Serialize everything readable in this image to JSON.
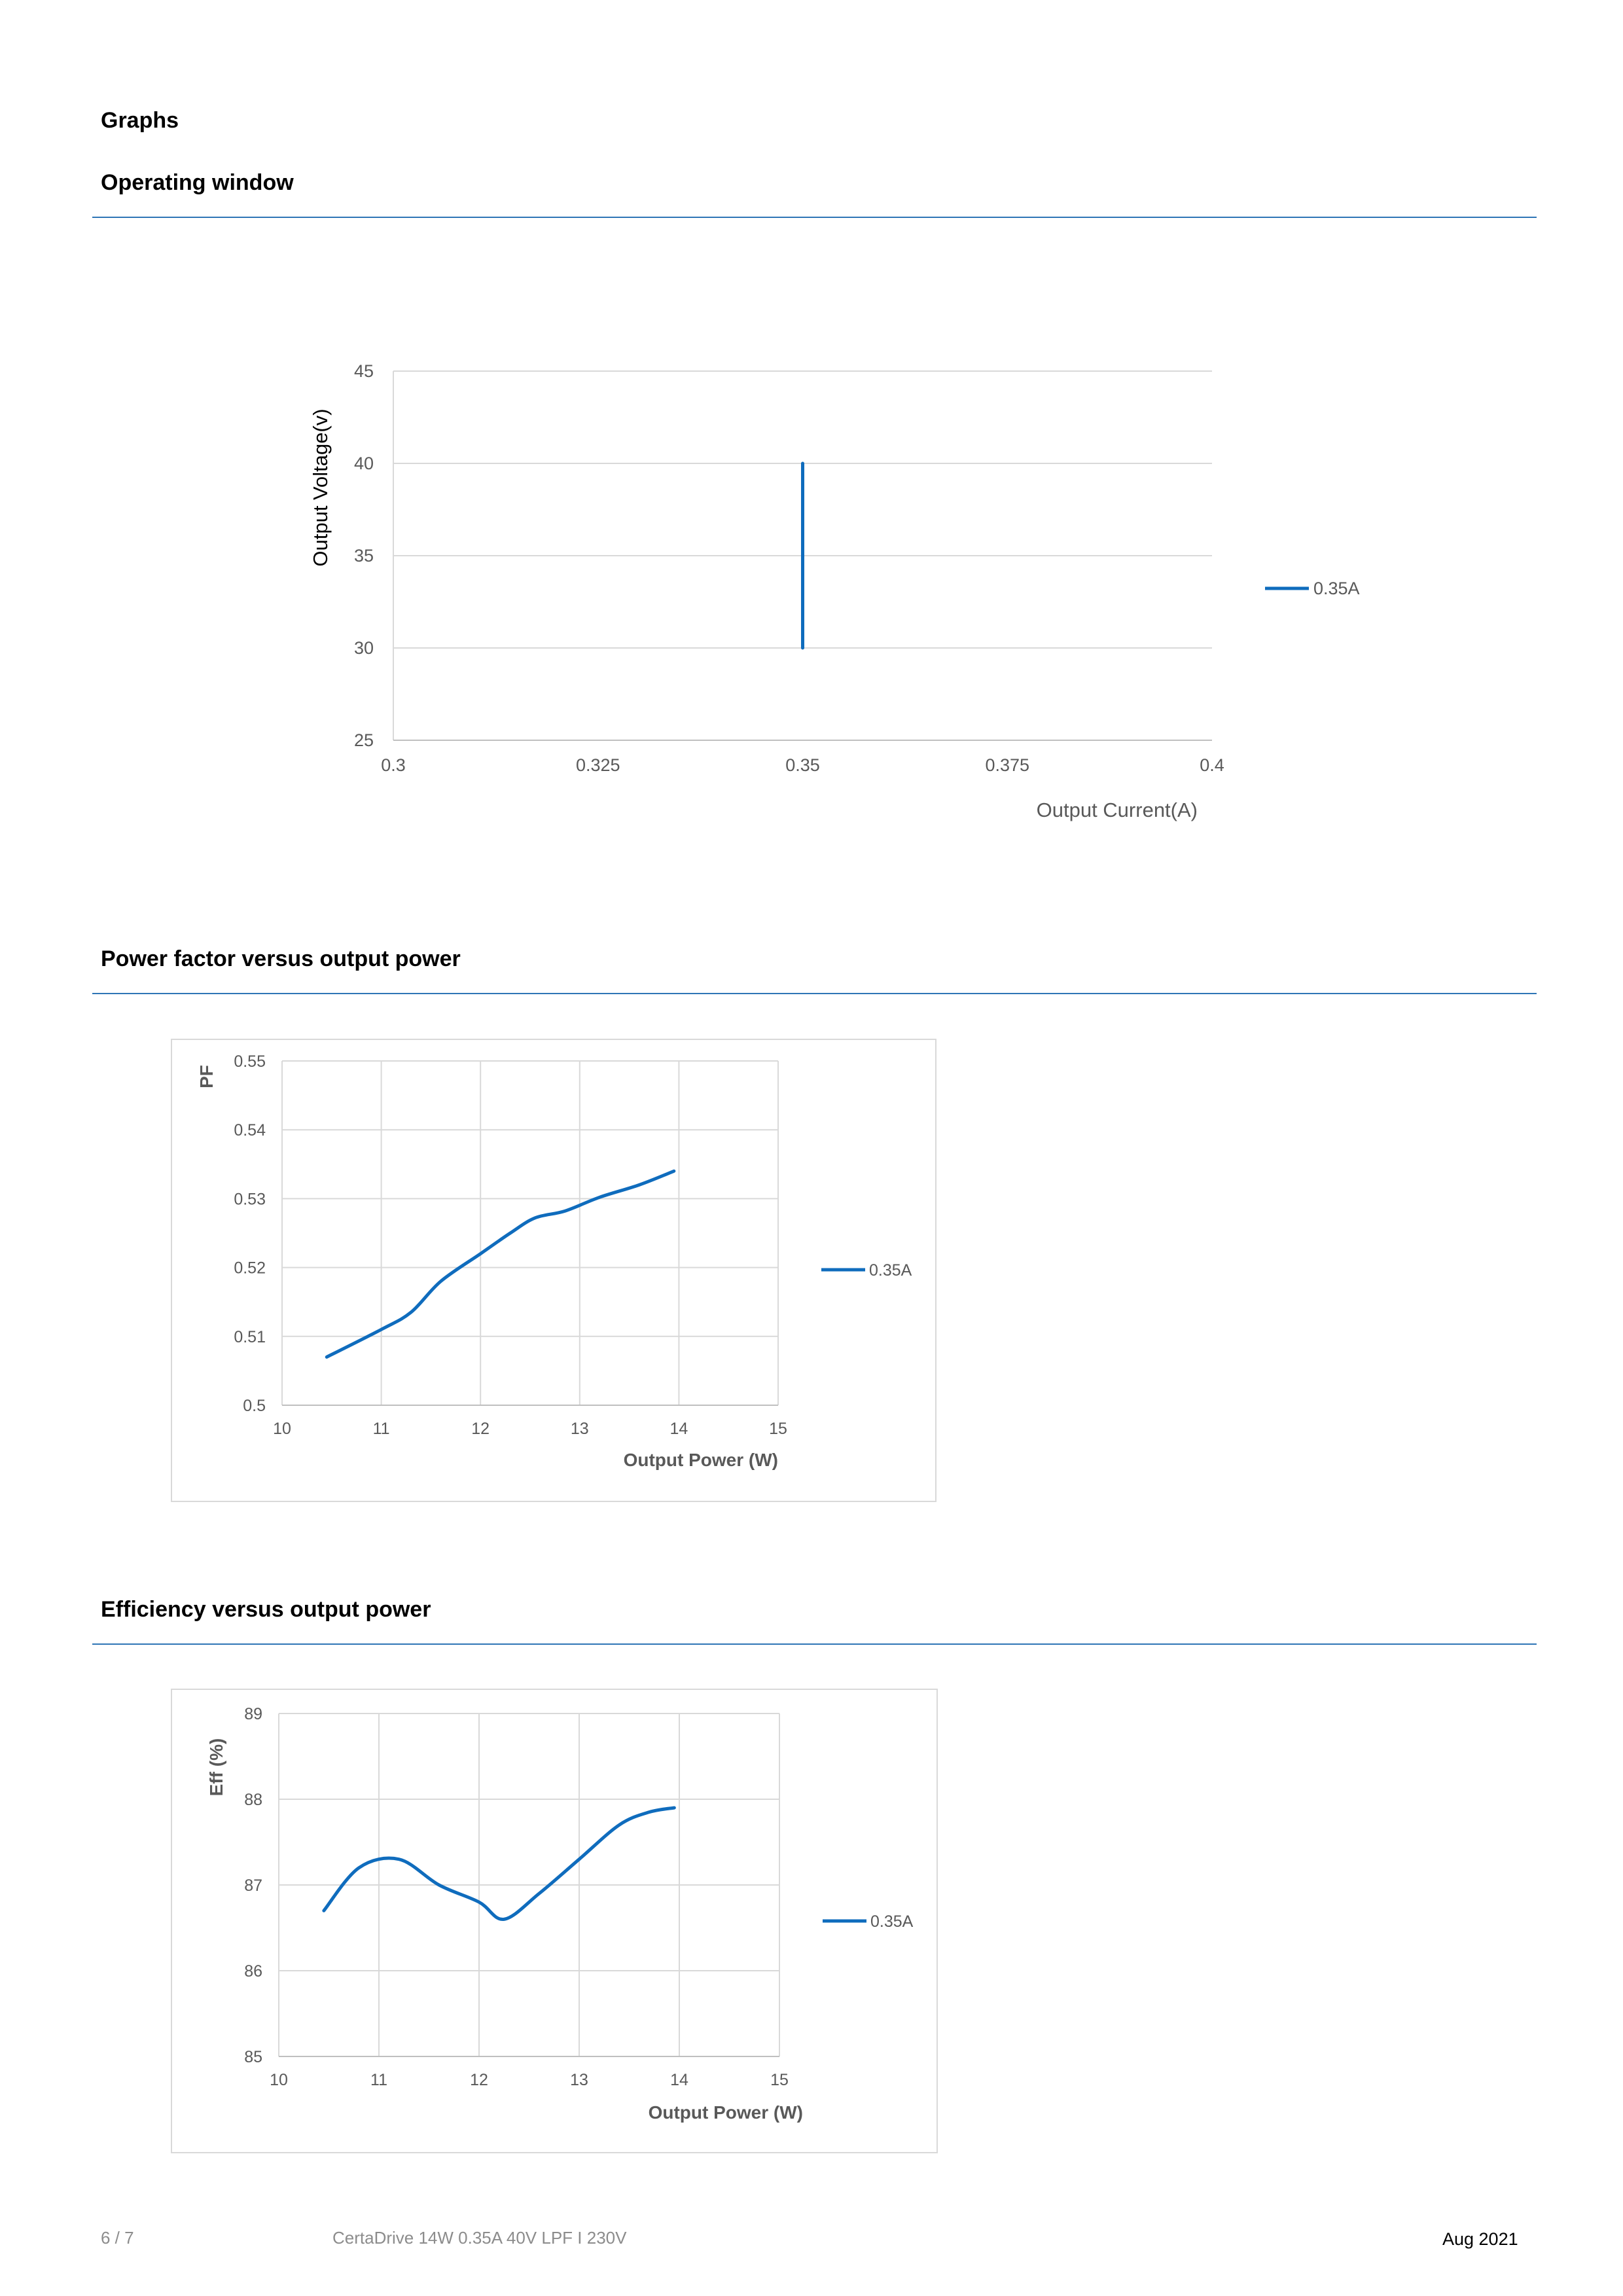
{
  "page": {
    "heading": "Graphs",
    "sections": [
      {
        "title": "Operating window"
      },
      {
        "title": "Power factor versus output power"
      },
      {
        "title": "Efficiency versus output power"
      }
    ]
  },
  "footer": {
    "page_number": "6 / 7",
    "product": "CertaDrive 14W 0.35A 40V LPF I 230V",
    "date": "Aug 2021"
  },
  "colors": {
    "series": "#0f6cbd",
    "rule": "#2e75b6",
    "grid": "#d9d9d9",
    "axis_text": "#595959"
  },
  "chart_data": [
    {
      "type": "line",
      "title": "",
      "xlabel": "Output Current(A)",
      "ylabel": "Output Voltage(v)",
      "xlim": [
        0.3,
        0.4
      ],
      "ylim": [
        25,
        45
      ],
      "x_ticks": [
        "0.3",
        "0.325",
        "0.35",
        "0.375",
        "0.4"
      ],
      "y_ticks": [
        "25",
        "30",
        "35",
        "40",
        "45"
      ],
      "grid": "horizontal",
      "legend": "right",
      "series": [
        {
          "name": "0.35A",
          "x": [
            0.35,
            0.35
          ],
          "y": [
            30,
            40
          ]
        }
      ]
    },
    {
      "type": "line",
      "title": "",
      "xlabel": "Output Power (W)",
      "ylabel": "PF",
      "xlim": [
        10,
        15
      ],
      "ylim": [
        0.5,
        0.55
      ],
      "x_ticks": [
        "10",
        "11",
        "12",
        "13",
        "14",
        "15"
      ],
      "y_ticks": [
        "0.5",
        "0.51",
        "0.52",
        "0.53",
        "0.54",
        "0.55"
      ],
      "grid": "both",
      "legend": "right",
      "series": [
        {
          "name": "0.35A",
          "x": [
            10.45,
            11.0,
            11.3,
            11.6,
            12.0,
            12.3,
            12.55,
            12.85,
            13.2,
            13.6,
            13.95
          ],
          "y": [
            0.507,
            0.511,
            0.5135,
            0.518,
            0.522,
            0.525,
            0.5272,
            0.5282,
            0.5302,
            0.532,
            0.534
          ]
        }
      ]
    },
    {
      "type": "line",
      "title": "",
      "xlabel": "Output Power (W)",
      "ylabel": "Eff  (%)",
      "xlim": [
        10,
        15
      ],
      "ylim": [
        85,
        89
      ],
      "x_ticks": [
        "10",
        "11",
        "12",
        "13",
        "14",
        "15"
      ],
      "y_ticks": [
        "85",
        "86",
        "87",
        "88",
        "89"
      ],
      "grid": "both",
      "legend": "right",
      "series": [
        {
          "name": "0.35A",
          "x": [
            10.45,
            10.8,
            11.2,
            11.6,
            12.0,
            12.25,
            12.6,
            13.0,
            13.4,
            13.7,
            13.95
          ],
          "y": [
            86.7,
            87.2,
            87.3,
            87.0,
            86.8,
            86.6,
            86.9,
            87.3,
            87.7,
            87.85,
            87.9
          ]
        }
      ]
    }
  ]
}
